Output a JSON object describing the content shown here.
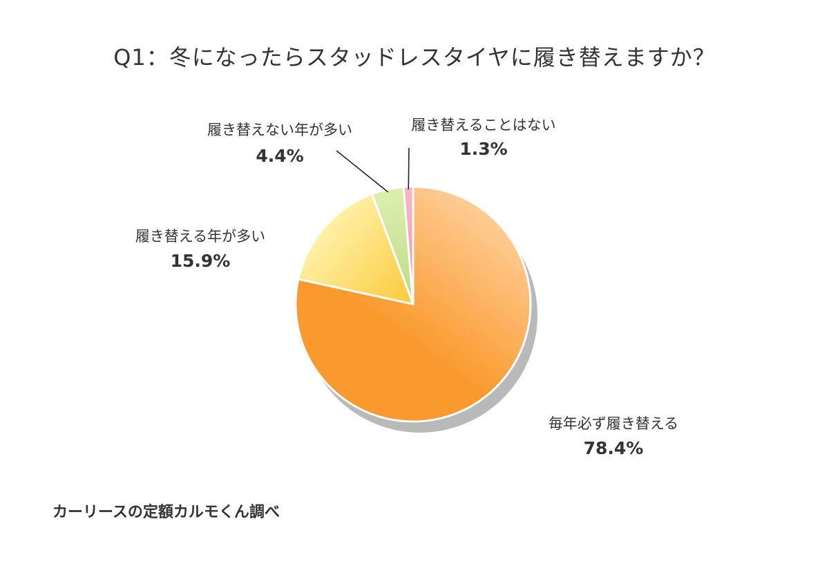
{
  "chart_data": {
    "type": "pie",
    "title": "Q1：冬になったらスタッドレスタイヤに履き替えますか？",
    "slices": [
      {
        "label": "毎年必ず履き替える",
        "value_text": "78.4%",
        "value": 78.4,
        "color_light": "#ffd2a0",
        "color_dark": "#fa9a2e"
      },
      {
        "label": "履き替える年が多い",
        "value_text": "15.9%",
        "value": 15.9,
        "color_light": "#fff1a8",
        "color_dark": "#fbc93a"
      },
      {
        "label": "履き替えない年が多い",
        "value_text": "4.4%",
        "value": 4.4,
        "color_light": "#dcefb0",
        "color_dark": "#bedb86"
      },
      {
        "label": "履き替えることはない",
        "value_text": "1.3%",
        "value": 1.3,
        "color_light": "#f8b7c8",
        "color_dark": "#ef8ea8"
      }
    ],
    "start": "12 o'clock",
    "direction": "clockwise",
    "shadow_color": "#b9b9b9"
  },
  "source": "カーリースの定額カルモくん調べ"
}
